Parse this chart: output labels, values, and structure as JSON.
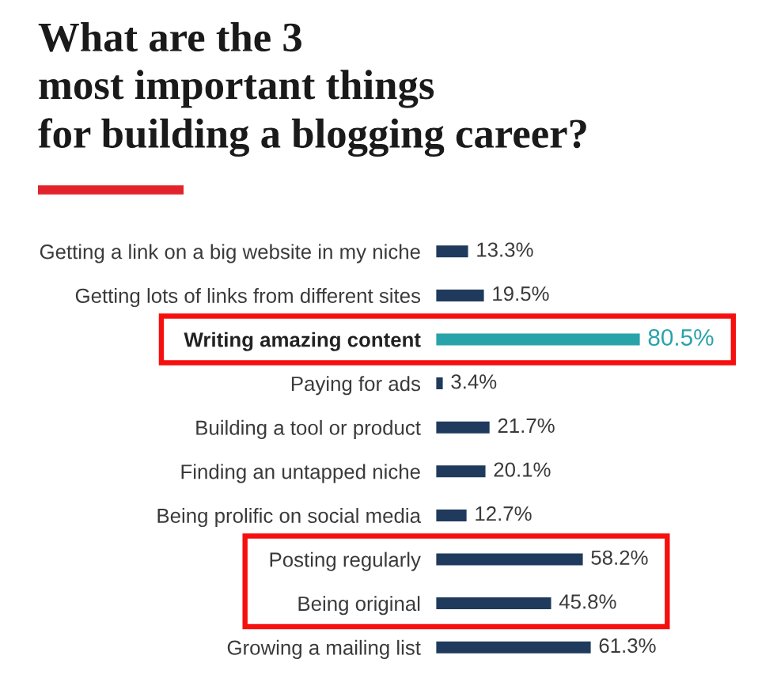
{
  "chart_data": {
    "type": "bar",
    "orientation": "horizontal",
    "title": "What are the 3\nmost important things\nfor building a blogging career?",
    "categories": [
      "Getting a link on a big website in my niche",
      "Getting lots of links from different sites",
      "Writing amazing content",
      "Paying for ads",
      "Building a tool or product",
      "Finding an untapped niche",
      "Being prolific on social media",
      "Posting regularly",
      "Being original",
      "Growing a mailing list"
    ],
    "values": [
      13.3,
      19.5,
      80.5,
      3.4,
      21.7,
      20.1,
      12.7,
      58.2,
      45.8,
      61.3
    ],
    "colors": [
      "#1f3a5c",
      "#1f3a5c",
      "#29a3aa",
      "#1f3a5c",
      "#1f3a5c",
      "#1f3a5c",
      "#1f3a5c",
      "#1f3a5c",
      "#1f3a5c",
      "#1f3a5c"
    ],
    "value_labels": [
      "13.3%",
      "19.5%",
      "80.5%",
      "3.4%",
      "21.7%",
      "20.1%",
      "12.7%",
      "58.2%",
      "45.8%",
      "61.3%"
    ],
    "tick_labels": "y"
  }
}
